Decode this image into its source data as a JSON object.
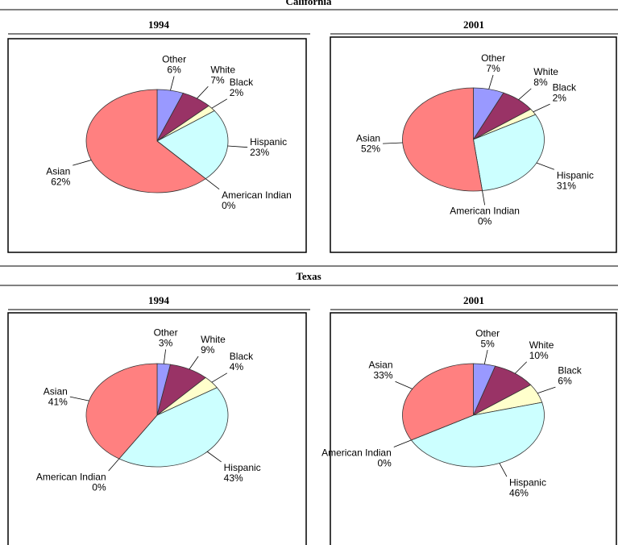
{
  "headings": [
    "California",
    "Texas"
  ],
  "chart_data": [
    {
      "type": "pie",
      "title": "1994",
      "categories": [
        "Other",
        "White",
        "Black",
        "Hispanic",
        "American Indian",
        "Asian"
      ],
      "values": [
        6,
        7,
        2,
        23,
        0,
        62
      ],
      "value_labels": [
        "6%",
        "7%",
        "2%",
        "23%",
        "0%",
        "62%"
      ],
      "colors": [
        "#9999ff",
        "#993366",
        "#ffffcc",
        "#ccffff",
        "#666699",
        "#ff8080"
      ]
    },
    {
      "type": "pie",
      "title": "2001",
      "categories": [
        "Other",
        "White",
        "Black",
        "Hispanic",
        "American Indian",
        "Asian"
      ],
      "values": [
        7,
        8,
        2,
        31,
        0,
        52
      ],
      "value_labels": [
        "7%",
        "8%",
        "2%",
        "31%",
        "0%",
        "52%"
      ],
      "colors": [
        "#9999ff",
        "#993366",
        "#ffffcc",
        "#ccffff",
        "#666699",
        "#ff8080"
      ]
    },
    {
      "type": "pie",
      "title": "1994",
      "categories": [
        "Other",
        "White",
        "Black",
        "Hispanic",
        "American Indian",
        "Asian"
      ],
      "values": [
        3,
        9,
        4,
        43,
        0,
        41
      ],
      "value_labels": [
        "3%",
        "9%",
        "4%",
        "43%",
        "0%",
        "41%"
      ],
      "colors": [
        "#9999ff",
        "#993366",
        "#ffffcc",
        "#ccffff",
        "#666699",
        "#ff8080"
      ]
    },
    {
      "type": "pie",
      "title": "2001",
      "categories": [
        "Other",
        "White",
        "Black",
        "Hispanic",
        "American Indian",
        "Asian"
      ],
      "values": [
        5,
        10,
        6,
        46,
        0,
        33
      ],
      "value_labels": [
        "5%",
        "10%",
        "6%",
        "46%",
        "0%",
        "33%"
      ],
      "colors": [
        "#9999ff",
        "#993366",
        "#ffffcc",
        "#ccffff",
        "#666699",
        "#ff8080"
      ]
    }
  ]
}
